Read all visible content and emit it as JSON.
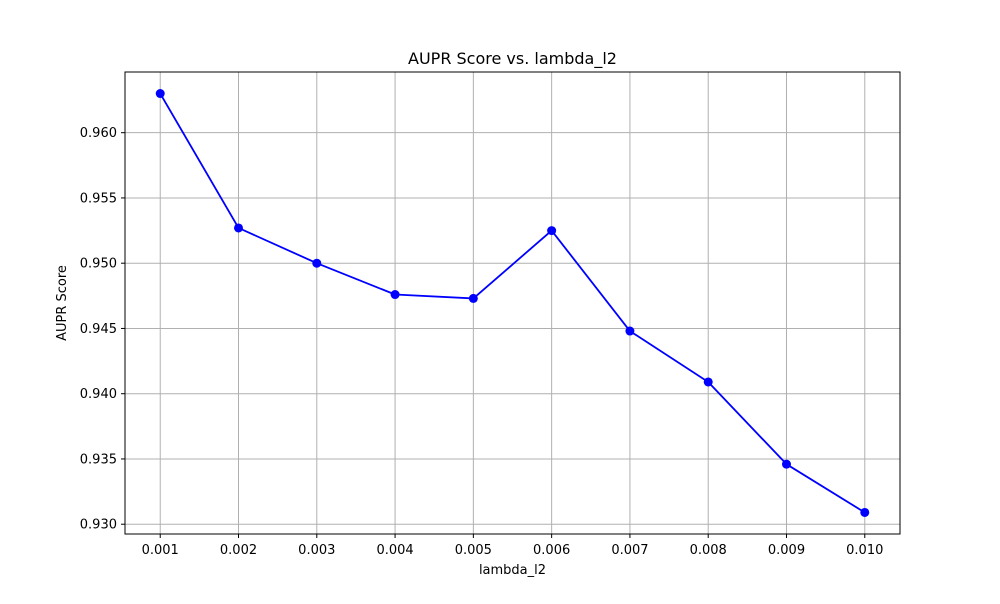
{
  "chart_data": {
    "type": "line",
    "title": "AUPR Score vs. lambda_l2",
    "xlabel": "lambda_l2",
    "ylabel": "AUPR Score",
    "x": [
      0.001,
      0.002,
      0.003,
      0.004,
      0.005,
      0.006,
      0.007,
      0.008,
      0.009,
      0.01
    ],
    "x_tick_labels": [
      "0.001",
      "0.002",
      "0.003",
      "0.004",
      "0.005",
      "0.006",
      "0.007",
      "0.008",
      "0.009",
      "0.010"
    ],
    "series": [
      {
        "values": [
          0.963,
          0.9527,
          0.95,
          0.9476,
          0.9473,
          0.9525,
          0.9448,
          0.9409,
          0.9346,
          0.9309
        ],
        "color": "#0000ff",
        "marker": "circle"
      }
    ],
    "y_ticks": [
      0.93,
      0.935,
      0.94,
      0.945,
      0.95,
      0.955,
      0.96
    ],
    "y_tick_labels": [
      "0.930",
      "0.935",
      "0.940",
      "0.945",
      "0.950",
      "0.955",
      "0.960"
    ],
    "xlim": [
      0.00055,
      0.01045
    ],
    "ylim": [
      0.92925,
      0.96465
    ],
    "grid": true,
    "grid_color": "#b0b0b0",
    "axis_color": "#000000"
  }
}
